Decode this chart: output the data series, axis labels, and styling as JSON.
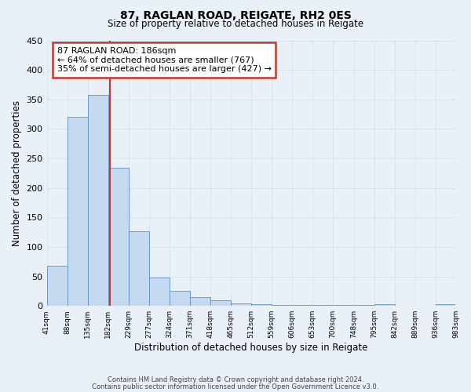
{
  "title": "87, RAGLAN ROAD, REIGATE, RH2 0ES",
  "subtitle": "Size of property relative to detached houses in Reigate",
  "xlabel": "Distribution of detached houses by size in Reigate",
  "ylabel": "Number of detached properties",
  "bar_values": [
    68,
    320,
    358,
    234,
    126,
    48,
    25,
    15,
    10,
    4,
    3,
    2,
    2,
    1,
    1,
    1,
    3,
    0,
    0,
    3
  ],
  "bin_edges": [
    41,
    88,
    135,
    182,
    229,
    277,
    324,
    371,
    418,
    465,
    512,
    559,
    606,
    653,
    700,
    748,
    795,
    842,
    889,
    936,
    983
  ],
  "bar_color": "#c5d9f0",
  "bar_edge_color": "#5b8fcb",
  "vline_x": 186,
  "vline_color": "#c0392b",
  "annotation_lines": [
    "87 RAGLAN ROAD: 186sqm",
    "← 64% of detached houses are smaller (767)",
    "35% of semi-detached houses are larger (427) →"
  ],
  "annotation_box_color": "#c0392b",
  "ylim": [
    0,
    450
  ],
  "yticks": [
    0,
    50,
    100,
    150,
    200,
    250,
    300,
    350,
    400,
    450
  ],
  "footer1": "Contains HM Land Registry data © Crown copyright and database right 2024.",
  "footer2": "Contains public sector information licensed under the Open Government Licence v3.0.",
  "bg_color": "#eaf0f8",
  "plot_bg_color": "#eaf0f8",
  "grid_color": "#d8e4f0",
  "tick_labels": [
    "41sqm",
    "88sqm",
    "135sqm",
    "182sqm",
    "229sqm",
    "277sqm",
    "324sqm",
    "371sqm",
    "418sqm",
    "465sqm",
    "512sqm",
    "559sqm",
    "606sqm",
    "653sqm",
    "700sqm",
    "748sqm",
    "795sqm",
    "842sqm",
    "889sqm",
    "936sqm",
    "983sqm"
  ]
}
